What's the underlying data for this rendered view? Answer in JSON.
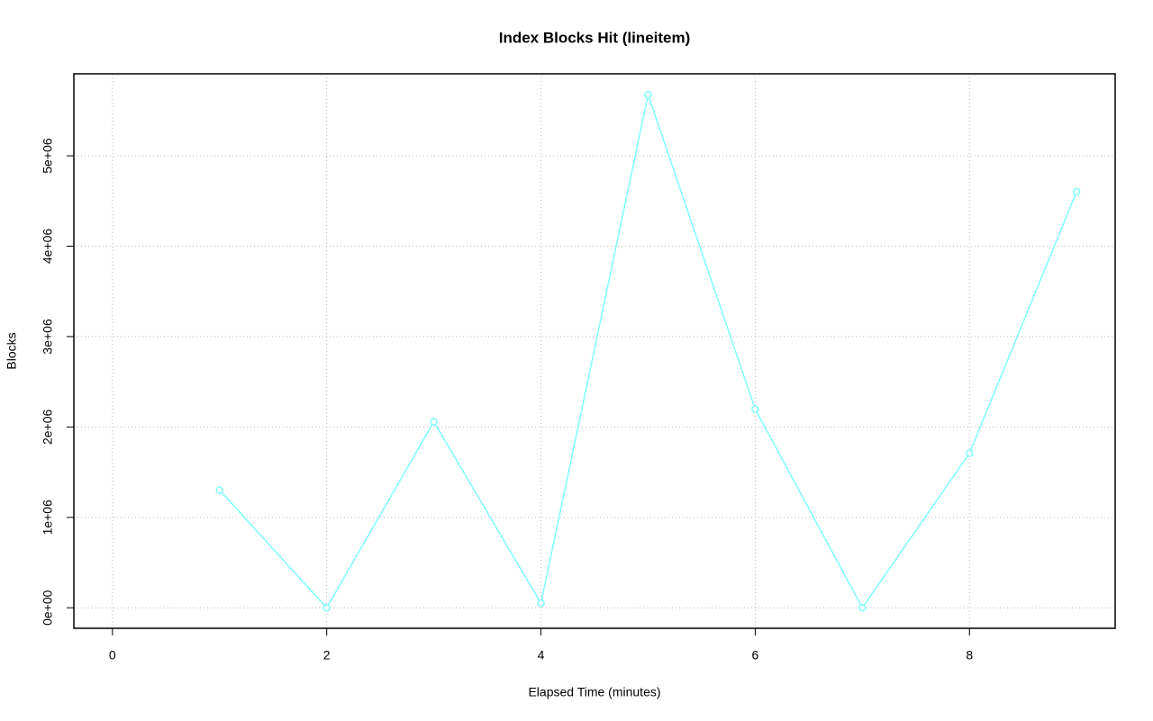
{
  "chart_data": {
    "type": "line",
    "title": "Index Blocks Hit (lineitem)",
    "x_label": "Elapsed Time (minutes)",
    "y_label": "Blocks",
    "x": [
      1,
      2,
      3,
      4,
      5,
      6,
      7,
      8,
      9
    ],
    "values": [
      1302000,
      0,
      2058000,
      50000,
      5676000,
      2197000,
      0,
      1710000,
      4602000
    ],
    "color": "#7fffff",
    "xlim": [
      -0.36,
      9.36
    ],
    "xticks": [
      0,
      2,
      4,
      6,
      8
    ],
    "ylim": [
      -227000,
      5907000
    ],
    "yticks": [
      {
        "value": 0,
        "label": "0e+00"
      },
      {
        "value": 1000000,
        "label": "1e+06"
      },
      {
        "value": 2000000,
        "label": "2e+06"
      },
      {
        "value": 3000000,
        "label": "3e+06"
      },
      {
        "value": 4000000,
        "label": "4e+06"
      },
      {
        "value": 5000000,
        "label": "5e+06"
      }
    ],
    "grid": true
  }
}
